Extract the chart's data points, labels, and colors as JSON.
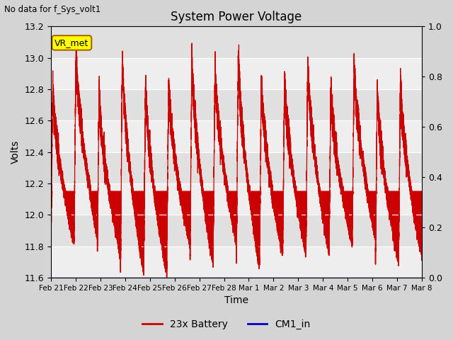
{
  "title": "System Power Voltage",
  "subtitle": "No data for f_Sys_volt1",
  "xlabel": "Time",
  "ylabel": "Volts",
  "ylim_left": [
    11.6,
    13.2
  ],
  "ylim_right": [
    0.0,
    1.0
  ],
  "yticks_left": [
    11.6,
    11.8,
    12.0,
    12.2,
    12.4,
    12.6,
    12.8,
    13.0,
    13.2
  ],
  "yticks_right": [
    0.0,
    0.2,
    0.4,
    0.6,
    0.8,
    1.0
  ],
  "fig_bg_color": "#d4d4d4",
  "plot_bg_color": "#eeeeee",
  "plot_bg_alt": "#e0e0e0",
  "line_color_battery": "#cc0000",
  "fill_color_battery": "#cc0000",
  "line_color_cm1": "#0000cc",
  "annotation_label": "VR_met",
  "annotation_facecolor": "#ffff00",
  "annotation_edgecolor": "#aa6600",
  "legend_label_1": "23x Battery",
  "legend_label_2": "CM1_in",
  "xtick_labels": [
    "Feb 21",
    "Feb 22",
    "Feb 23",
    "Feb 24",
    "Feb 25",
    "Feb 26",
    "Feb 27",
    "Feb 28",
    "Mar 1",
    "Mar 2",
    "Mar 3",
    "Mar 4",
    "Mar 5",
    "Mar 6",
    "Mar 7",
    "Mar 8"
  ],
  "n_cycles": 16,
  "n_days": 15
}
